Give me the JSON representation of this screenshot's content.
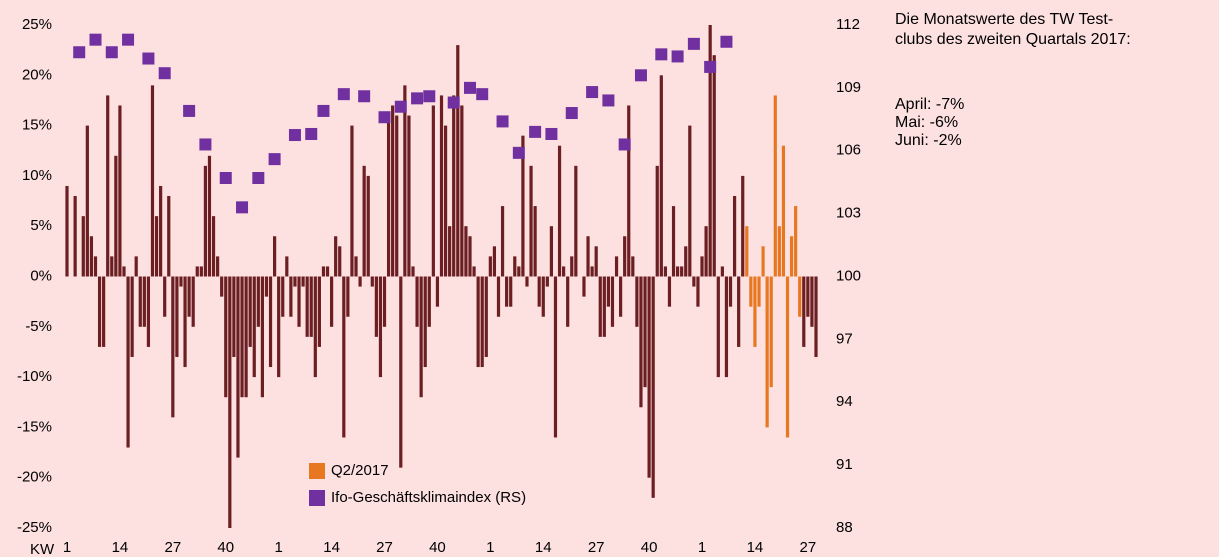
{
  "chart_data": {
    "type": "bar",
    "x_label": "KW",
    "categories": [
      "1",
      null,
      null,
      null,
      null,
      null,
      null,
      null,
      null,
      null,
      null,
      null,
      null,
      "14",
      null,
      null,
      null,
      null,
      null,
      null,
      null,
      null,
      null,
      null,
      null,
      null,
      "27",
      null,
      null,
      null,
      null,
      null,
      null,
      null,
      null,
      null,
      null,
      null,
      null,
      "40",
      null,
      null,
      null,
      null,
      null,
      null,
      null,
      null,
      null,
      null,
      null,
      null,
      "1",
      null,
      null,
      null,
      null,
      null,
      null,
      null,
      null,
      null,
      null,
      null,
      null,
      "14",
      null,
      null,
      null,
      null,
      null,
      null,
      null,
      null,
      null,
      null,
      null,
      null,
      "27",
      null,
      null,
      null,
      null,
      null,
      null,
      null,
      null,
      null,
      null,
      null,
      null,
      "40",
      null,
      null,
      null,
      null,
      null,
      null,
      null,
      null,
      null,
      null,
      null,
      null,
      "1",
      null,
      null,
      null,
      null,
      null,
      null,
      null,
      null,
      null,
      null,
      null,
      null,
      "14",
      null,
      null,
      null,
      null,
      null,
      null,
      null,
      null,
      null,
      null,
      null,
      null,
      "27",
      null,
      null,
      null,
      null,
      null,
      null,
      null,
      null,
      null,
      null,
      null,
      null,
      "40",
      null,
      null,
      null,
      null,
      null,
      null,
      null,
      null,
      null,
      null,
      null,
      null,
      "1",
      null,
      null,
      null,
      null,
      null,
      null,
      null,
      null,
      null,
      null,
      null,
      null,
      "14",
      null,
      null,
      null,
      null,
      null,
      null,
      null,
      null,
      null,
      null,
      null,
      null,
      "27",
      null,
      null
    ],
    "series": [
      {
        "color": "#6b1f22",
        "values": [
          9,
          0,
          8,
          0,
          6,
          15,
          4,
          2,
          -7,
          -7,
          18,
          2,
          12,
          17,
          1,
          -17,
          -8,
          2,
          -5,
          -5,
          -7,
          19,
          6,
          9,
          -4,
          8,
          -14,
          -8,
          -1,
          -9,
          -4,
          -5,
          1,
          1,
          11,
          12,
          6,
          2,
          -2,
          -12,
          -25,
          -8,
          -18,
          -12,
          -12,
          -7,
          -10,
          -5,
          -12,
          -2,
          -9,
          4,
          -10,
          -4,
          2,
          -4,
          -1,
          -5,
          -1,
          -6,
          -6,
          -10,
          -7,
          1,
          1,
          -5,
          4,
          3,
          -16,
          -4,
          15,
          2,
          -1,
          11,
          10,
          -1,
          -6,
          -10,
          -5,
          16,
          17,
          16,
          -19,
          19,
          16,
          1,
          -5,
          -12,
          -9,
          -5,
          17,
          -3,
          18,
          15,
          5,
          18,
          23,
          17,
          5,
          4,
          1,
          -9,
          -9,
          -8,
          2,
          3,
          -4,
          7,
          -3,
          -3,
          2,
          1,
          14,
          -1,
          11,
          7,
          -3,
          -4,
          -1,
          5,
          -16,
          13,
          1,
          -5,
          2,
          11,
          0,
          -2,
          4,
          1,
          3,
          -6,
          -6,
          -3,
          -5,
          2,
          -4,
          4,
          17,
          2,
          -5,
          -13,
          -11,
          -20,
          -22,
          11,
          20,
          1,
          -3,
          7,
          1,
          1,
          3,
          15,
          -1,
          -3,
          2,
          5,
          25,
          22,
          -10,
          1,
          -10,
          -3,
          8,
          -7,
          10,
          null,
          null,
          null,
          null,
          null,
          null,
          null,
          null,
          null,
          null,
          null,
          null,
          null,
          null,
          -7,
          -4,
          -5,
          -8
        ]
      },
      {
        "name": "Q2/2017",
        "color": "#e87722",
        "values": [
          null,
          null,
          null,
          null,
          null,
          null,
          null,
          null,
          null,
          null,
          null,
          null,
          null,
          null,
          null,
          null,
          null,
          null,
          null,
          null,
          null,
          null,
          null,
          null,
          null,
          null,
          null,
          null,
          null,
          null,
          null,
          null,
          null,
          null,
          null,
          null,
          null,
          null,
          null,
          null,
          null,
          null,
          null,
          null,
          null,
          null,
          null,
          null,
          null,
          null,
          null,
          null,
          null,
          null,
          null,
          null,
          null,
          null,
          null,
          null,
          null,
          null,
          null,
          null,
          null,
          null,
          null,
          null,
          null,
          null,
          null,
          null,
          null,
          null,
          null,
          null,
          null,
          null,
          null,
          null,
          null,
          null,
          null,
          null,
          null,
          null,
          null,
          null,
          null,
          null,
          null,
          null,
          null,
          null,
          null,
          null,
          null,
          null,
          null,
          null,
          null,
          null,
          null,
          null,
          null,
          null,
          null,
          null,
          null,
          null,
          null,
          null,
          null,
          null,
          null,
          null,
          null,
          null,
          null,
          null,
          null,
          null,
          null,
          null,
          null,
          null,
          null,
          null,
          null,
          null,
          null,
          null,
          null,
          null,
          null,
          null,
          null,
          null,
          null,
          null,
          null,
          null,
          null,
          null,
          null,
          null,
          null,
          null,
          null,
          null,
          null,
          null,
          null,
          null,
          null,
          null,
          null,
          null,
          null,
          null,
          null,
          null,
          null,
          null,
          null,
          null,
          null,
          5,
          -3,
          -7,
          -3,
          3,
          -15,
          -11,
          18,
          5,
          13,
          -16,
          4,
          7,
          -4,
          null,
          null,
          null,
          null
        ]
      },
      {
        "name": "Ifo-Geschäftsklimaindex (RS)",
        "type": "scatter",
        "axis": "y2",
        "color": "#7030a0",
        "values": [
          null,
          null,
          null,
          110.7,
          null,
          null,
          null,
          111.3,
          null,
          null,
          null,
          110.7,
          null,
          null,
          null,
          111.3,
          null,
          null,
          null,
          null,
          110.4,
          null,
          null,
          null,
          109.7,
          null,
          null,
          null,
          null,
          null,
          107.9,
          null,
          null,
          null,
          106.3,
          null,
          null,
          null,
          null,
          104.7,
          null,
          null,
          null,
          103.3,
          null,
          null,
          null,
          104.7,
          null,
          null,
          null,
          105.6,
          null,
          null,
          null,
          null,
          106.75,
          null,
          null,
          null,
          106.8,
          null,
          null,
          107.9,
          null,
          null,
          null,
          null,
          108.7,
          null,
          null,
          null,
          null,
          108.6,
          null,
          null,
          null,
          null,
          107.6,
          null,
          null,
          null,
          108.1,
          null,
          null,
          null,
          108.5,
          null,
          null,
          108.6,
          null,
          null,
          null,
          null,
          null,
          108.3,
          null,
          null,
          null,
          109.0,
          null,
          null,
          108.7,
          null,
          null,
          null,
          null,
          107.4,
          null,
          null,
          null,
          105.9,
          null,
          null,
          null,
          106.9,
          null,
          null,
          null,
          106.8,
          null,
          null,
          null,
          null,
          107.8,
          null,
          null,
          null,
          null,
          108.8,
          null,
          null,
          null,
          108.4,
          null,
          null,
          null,
          106.3,
          null,
          null,
          null,
          109.6,
          null,
          null,
          null,
          null,
          110.6,
          null,
          null,
          null,
          110.5,
          null,
          null,
          null,
          111.1,
          null,
          null,
          null,
          110.0,
          null,
          null,
          null,
          111.2,
          null,
          null,
          null,
          null,
          null,
          null,
          null,
          null,
          null,
          null,
          null,
          null,
          null,
          null,
          null,
          null,
          null,
          null,
          null,
          null,
          null,
          null
        ]
      }
    ],
    "ylim": [
      -25,
      25
    ],
    "yticks": [
      {
        "value": -25,
        "label": "-25%"
      },
      {
        "value": -20,
        "label": "-20%"
      },
      {
        "value": -15,
        "label": "-15%"
      },
      {
        "value": -10,
        "label": "-10%"
      },
      {
        "value": -5,
        "label": "-5%"
      },
      {
        "value": 0,
        "label": "0%"
      },
      {
        "value": 5,
        "label": "5%"
      },
      {
        "value": 10,
        "label": "10%"
      },
      {
        "value": 15,
        "label": "15%"
      },
      {
        "value": 20,
        "label": "20%"
      },
      {
        "value": 25,
        "label": "25%"
      }
    ],
    "y2lim": [
      88,
      112
    ],
    "y2ticks": [
      88,
      91,
      94,
      97,
      100,
      103,
      106,
      109,
      112
    ],
    "legend": "lower center",
    "note": [
      "Die Monatswerte des TW Test-",
      "clubs des zweiten Quartals 2017:"
    ],
    "monthly": [
      "April: -7%",
      "Mai: -6%",
      "Juni: -2%"
    ]
  }
}
